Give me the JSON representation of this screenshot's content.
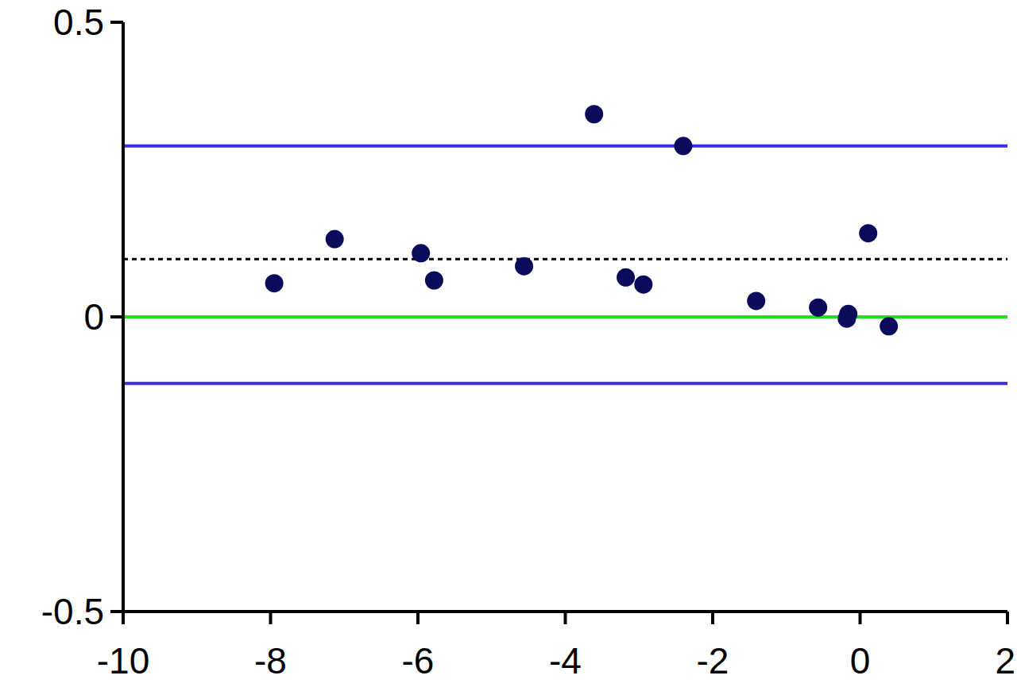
{
  "chart_data": {
    "type": "scatter",
    "x": [
      -7.95,
      -7.13,
      -5.96,
      -5.78,
      -4.56,
      -3.61,
      -3.18,
      -2.94,
      -2.4,
      -1.41,
      -0.57,
      -0.16,
      -0.18,
      0.11,
      0.39
    ],
    "values": [
      0.057,
      0.132,
      0.108,
      0.062,
      0.086,
      0.344,
      0.067,
      0.055,
      0.29,
      0.027,
      0.016,
      0.005,
      -0.003,
      0.142,
      -0.016
    ],
    "color": "#0b0b5c",
    "marker": "circle",
    "xlim": [
      -10,
      2
    ],
    "xticks": [
      -10,
      -8,
      -6,
      -4,
      -2,
      0,
      2
    ],
    "ylim": [
      -0.5,
      0.5
    ],
    "yticks": [
      -0.5,
      0,
      0.5
    ],
    "grid": false,
    "reference_lines": [
      {
        "value": 0.29,
        "color": "#3a2ee6",
        "line_style": "solid"
      },
      {
        "value": 0.098,
        "color": "#000000",
        "line_style": "dotted"
      },
      {
        "value": 0,
        "color": "#22dd22",
        "line_style": "solid"
      },
      {
        "value": -0.113,
        "color": "#3a2ee6",
        "line_style": "solid"
      }
    ]
  }
}
